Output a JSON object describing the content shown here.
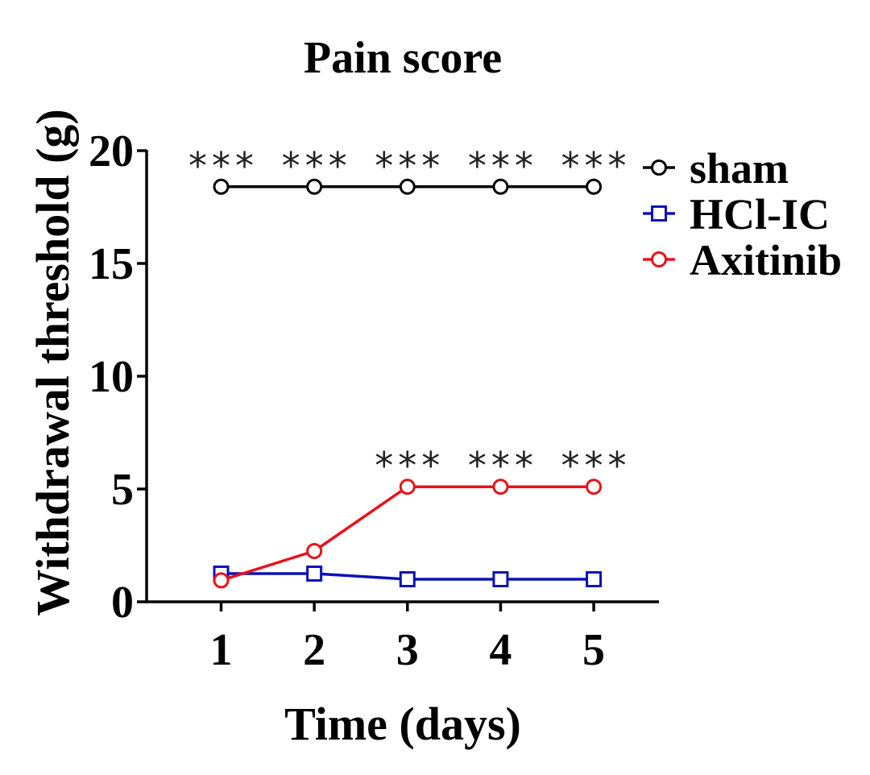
{
  "chart_data": {
    "type": "line",
    "title": "Pain score",
    "xlabel": "Time (days)",
    "ylabel": "Withdrawal threshold (g)",
    "x": [
      1,
      2,
      3,
      4,
      5
    ],
    "xticks": [
      "1",
      "2",
      "3",
      "4",
      "5"
    ],
    "xlim": [
      0.2,
      5.7
    ],
    "ylim": [
      0,
      20
    ],
    "yticks": [
      "0",
      "5",
      "10",
      "15",
      "20"
    ],
    "grid": false,
    "legend_position": "right",
    "series": [
      {
        "name": "sham",
        "values": [
          18.4,
          18.4,
          18.4,
          18.4,
          18.4
        ],
        "color": "#000000",
        "marker": "circle"
      },
      {
        "name": "HCl-IC",
        "values": [
          1.25,
          1.25,
          1.0,
          1.0,
          1.0
        ],
        "color": "#0a12b4",
        "marker": "square"
      },
      {
        "name": "Axitinib",
        "values": [
          0.95,
          2.25,
          5.1,
          5.1,
          5.1
        ],
        "color": "#e8121a",
        "marker": "circle"
      }
    ],
    "annotations": [
      {
        "text": "***",
        "series": "sham",
        "x": 1
      },
      {
        "text": "***",
        "series": "sham",
        "x": 2
      },
      {
        "text": "***",
        "series": "sham",
        "x": 3
      },
      {
        "text": "***",
        "series": "sham",
        "x": 4
      },
      {
        "text": "***",
        "series": "sham",
        "x": 5
      },
      {
        "text": "***",
        "series": "Axitinib",
        "x": 3
      },
      {
        "text": "***",
        "series": "Axitinib",
        "x": 4
      },
      {
        "text": "***",
        "series": "Axitinib",
        "x": 5
      }
    ]
  }
}
